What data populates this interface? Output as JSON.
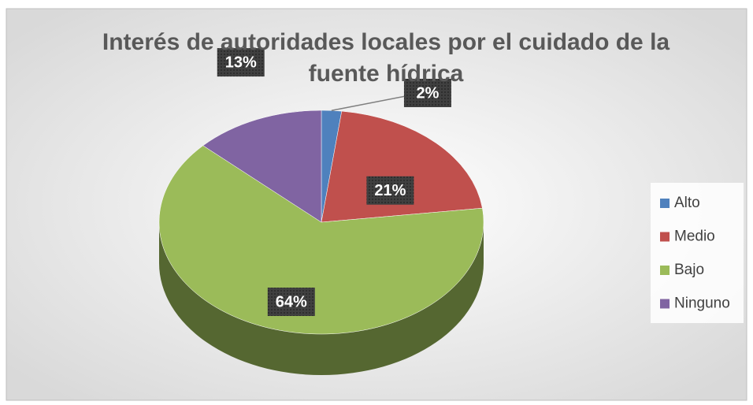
{
  "chart_data": {
    "type": "pie3d",
    "title": "Interés de autoridades locales por el cuidado de la fuente hídrica",
    "categories": [
      "Alto",
      "Medio",
      "Bajo",
      "Ninguno"
    ],
    "values": [
      2,
      21,
      64,
      13
    ],
    "value_labels": [
      "2%",
      "21%",
      "64%",
      "13%"
    ],
    "colors": [
      "#4f81bd",
      "#c0504d",
      "#9bbb59",
      "#8064a2"
    ],
    "legend": "right"
  }
}
